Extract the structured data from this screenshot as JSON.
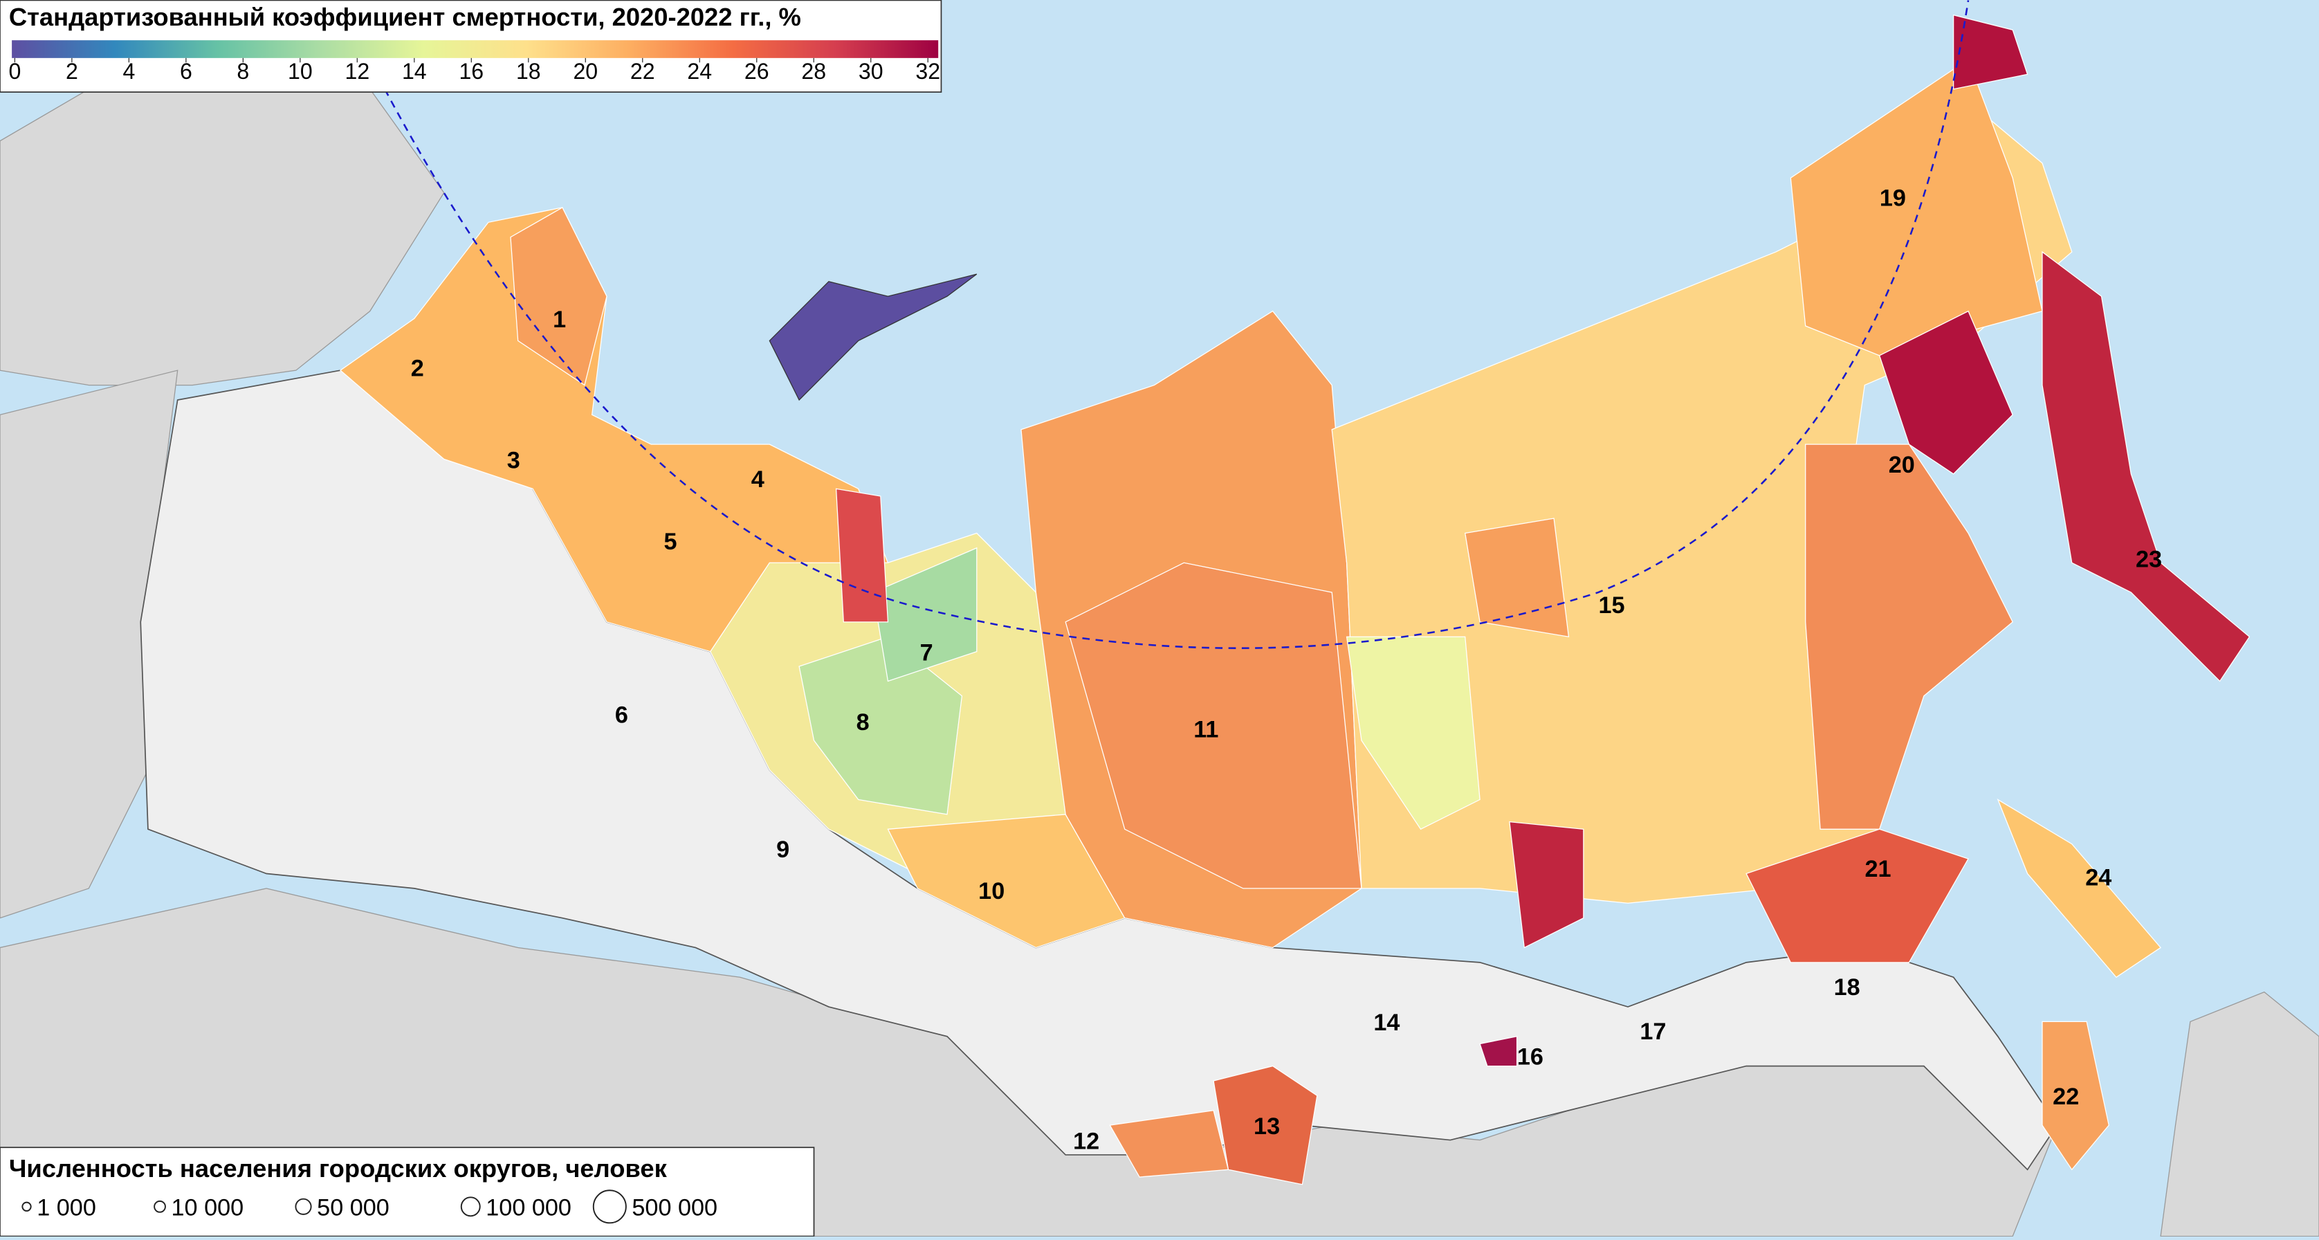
{
  "map": {
    "title": "Стандартизованный коэффициент смертности, 2020-2022 гг., %",
    "colorbar": {
      "ticks": [
        0,
        2,
        4,
        6,
        8,
        10,
        12,
        14,
        16,
        18,
        20,
        22,
        24,
        26,
        28,
        30,
        32
      ],
      "colors": [
        "#5e4fa2",
        "#3288bd",
        "#66c2a5",
        "#abdda4",
        "#e6f598",
        "#fee08b",
        "#fdae61",
        "#f46d43",
        "#d53e4f",
        "#9e0142"
      ]
    },
    "size_legend": {
      "title": "Численность населения городских округов, человек",
      "entries": [
        {
          "value": 1000,
          "label": "1 000"
        },
        {
          "value": 10000,
          "label": "10 000"
        },
        {
          "value": 50000,
          "label": "50 000"
        },
        {
          "value": 100000,
          "label": "100 000"
        },
        {
          "value": 500000,
          "label": "500 000"
        }
      ]
    },
    "region_labels": [
      "1",
      "2",
      "3",
      "4",
      "5",
      "6",
      "7",
      "8",
      "9",
      "10",
      "11",
      "12",
      "13",
      "14",
      "15",
      "16",
      "17",
      "18",
      "19",
      "20",
      "21",
      "22",
      "23",
      "24"
    ]
  }
}
